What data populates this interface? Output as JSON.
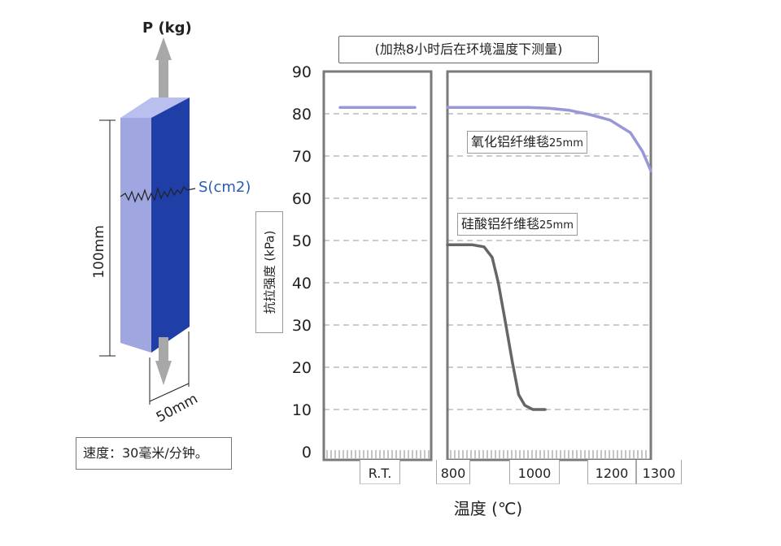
{
  "specimen": {
    "load_label": "P (kg)",
    "area_label": "S(cm2)",
    "length_label": "100mm",
    "width_label": "50mm",
    "speed_note": "速度：30毫米/分钟。"
  },
  "colors": {
    "alumina_series": "#9a97d6",
    "silicate_series": "#666666",
    "block_front": "#9fa6e0",
    "block_side": "#1f3fa6",
    "block_top": "#b9bfee",
    "arrow": "#a8a8a8",
    "grid": "#9a9a9a",
    "frame": "#7a7a7a"
  },
  "chart_data": {
    "type": "line",
    "title": "(加热8小时后在环境温度下测量)",
    "xlabel": "温度 (℃)",
    "ylabel": "抗拉强度 (kPa)",
    "ylim": [
      0,
      90
    ],
    "yticks": [
      0,
      10,
      20,
      30,
      40,
      50,
      60,
      70,
      80,
      90
    ],
    "x_segments": [
      {
        "name": "R.T.",
        "tick_labels": [
          "R.T."
        ]
      },
      {
        "name": "800-1300",
        "xlim": [
          800,
          1300
        ],
        "tick_labels": [
          "800",
          "1000",
          "1200",
          "1300"
        ],
        "ticks": [
          800,
          1000,
          1200,
          1300
        ]
      }
    ],
    "grid": true,
    "series": [
      {
        "name": "氧化铝纤维毯",
        "name_suffix": "25mm",
        "rt_value": 81.5,
        "points": [
          [
            800,
            81.5
          ],
          [
            900,
            81.5
          ],
          [
            1000,
            81.5
          ],
          [
            1050,
            81.3
          ],
          [
            1100,
            80.8
          ],
          [
            1150,
            79.8
          ],
          [
            1200,
            78.5
          ],
          [
            1250,
            75.5
          ],
          [
            1280,
            71.0
          ],
          [
            1300,
            66.5
          ]
        ]
      },
      {
        "name": "硅酸铝纤维毯",
        "name_suffix": "25mm",
        "rt_value": null,
        "points": [
          [
            800,
            49.0
          ],
          [
            860,
            49.0
          ],
          [
            890,
            48.5
          ],
          [
            910,
            46.0
          ],
          [
            925,
            40.0
          ],
          [
            940,
            32.0
          ],
          [
            960,
            21.0
          ],
          [
            975,
            13.5
          ],
          [
            990,
            11.0
          ],
          [
            1010,
            10.0
          ],
          [
            1040,
            10.0
          ]
        ]
      }
    ]
  }
}
